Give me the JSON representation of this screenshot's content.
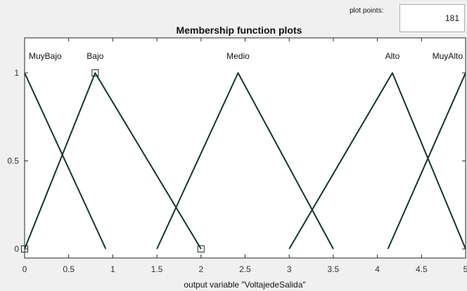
{
  "plot_points": {
    "label": "plot points:",
    "value": "181"
  },
  "chart_data": {
    "type": "line",
    "title": "Membership function plots",
    "xlabel": "output variable \"VoltajedeSalida\"",
    "ylabel": "",
    "xlim": [
      0,
      5
    ],
    "ylim": [
      0,
      1
    ],
    "x_ticks": [
      "0",
      "0.5",
      "1",
      "1.5",
      "2",
      "2.5",
      "3",
      "3.5",
      "4",
      "4.5",
      "5"
    ],
    "y_ticks": [
      "0",
      "0.5",
      "1"
    ],
    "grid": false,
    "series": [
      {
        "name": "MuyBajo",
        "x": [
          -1,
          0,
          0.92
        ],
        "y": [
          0,
          1,
          0
        ]
      },
      {
        "name": "Bajo",
        "x": [
          0,
          0.8,
          2
        ],
        "y": [
          0,
          1,
          0
        ]
      },
      {
        "name": "Medio",
        "x": [
          1.5,
          2.42,
          3.5
        ],
        "y": [
          0,
          1,
          0
        ]
      },
      {
        "name": "Alto",
        "x": [
          3,
          4.17,
          5
        ],
        "y": [
          0,
          1,
          0
        ]
      },
      {
        "name": "MuyAlto",
        "x": [
          4.12,
          5,
          6
        ],
        "y": [
          0,
          1,
          0
        ]
      }
    ],
    "selected_series": "Bajo",
    "colors": {
      "curve": "#17332e",
      "axis": "#262626",
      "plot_background": "#ffffff",
      "window_background": "#f0f0f0"
    }
  }
}
